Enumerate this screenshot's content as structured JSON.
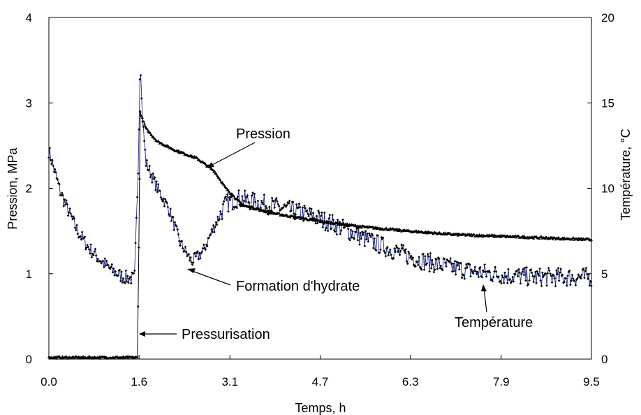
{
  "chart_data": {
    "type": "scatter",
    "xlabel": "Temps, h",
    "ylabel_left": "Pression, MPa",
    "ylabel_right": "Température, °C",
    "xlim": [
      0,
      9.5
    ],
    "ylim_left": [
      0,
      4
    ],
    "ylim_right": [
      0,
      20
    ],
    "xticks": [
      "0.0",
      "1.6",
      "3.1",
      "4.7",
      "6.3",
      "7.9",
      "9.5"
    ],
    "xtick_values": [
      0,
      1.58,
      3.17,
      4.75,
      6.33,
      7.92,
      9.5
    ],
    "yticks_left": [
      "0",
      "1",
      "2",
      "3",
      "4"
    ],
    "yticks_right": [
      "0",
      "5",
      "10",
      "15",
      "20"
    ],
    "grid": false,
    "annotations": {
      "pression": "Pression",
      "formation": "Formation d'hydrate",
      "pressurisation": "Pressurisation",
      "temperature": "Température"
    },
    "series": [
      {
        "name": "Pression",
        "axis": "left",
        "color": "#000000",
        "x": [
          0.0,
          0.4,
          0.8,
          1.2,
          1.55,
          1.57,
          1.6,
          1.62,
          1.7,
          1.9,
          2.2,
          2.6,
          2.9,
          3.1,
          3.4,
          4.0,
          4.7,
          5.5,
          6.3,
          7.1,
          7.9,
          8.7,
          9.5
        ],
        "y": [
          0.02,
          0.02,
          0.02,
          0.02,
          0.02,
          1.0,
          2.9,
          2.85,
          2.7,
          2.55,
          2.45,
          2.35,
          2.2,
          2.0,
          1.8,
          1.7,
          1.62,
          1.55,
          1.5,
          1.46,
          1.44,
          1.42,
          1.4
        ]
      },
      {
        "name": "Température",
        "axis": "right",
        "color": "#1f2a8a",
        "x": [
          0.0,
          0.1,
          0.2,
          0.35,
          0.5,
          0.7,
          0.9,
          1.1,
          1.3,
          1.5,
          1.57,
          1.6,
          1.63,
          1.7,
          1.9,
          2.1,
          2.3,
          2.5,
          2.7,
          2.9,
          3.1,
          3.3,
          3.6,
          4.0,
          4.5,
          5.0,
          5.5,
          6.0,
          6.5,
          7.0,
          7.5,
          8.0,
          8.5,
          9.0,
          9.5
        ],
        "y": [
          12.2,
          11.0,
          9.8,
          8.6,
          7.5,
          6.5,
          5.8,
          5.2,
          4.8,
          4.7,
          12.0,
          18.0,
          14.5,
          11.5,
          10.0,
          8.8,
          6.8,
          5.7,
          6.3,
          7.8,
          9.1,
          9.4,
          9.2,
          8.9,
          8.5,
          7.9,
          7.1,
          6.4,
          5.8,
          5.4,
          5.1,
          4.9,
          4.8,
          4.8,
          4.8
        ]
      }
    ]
  }
}
